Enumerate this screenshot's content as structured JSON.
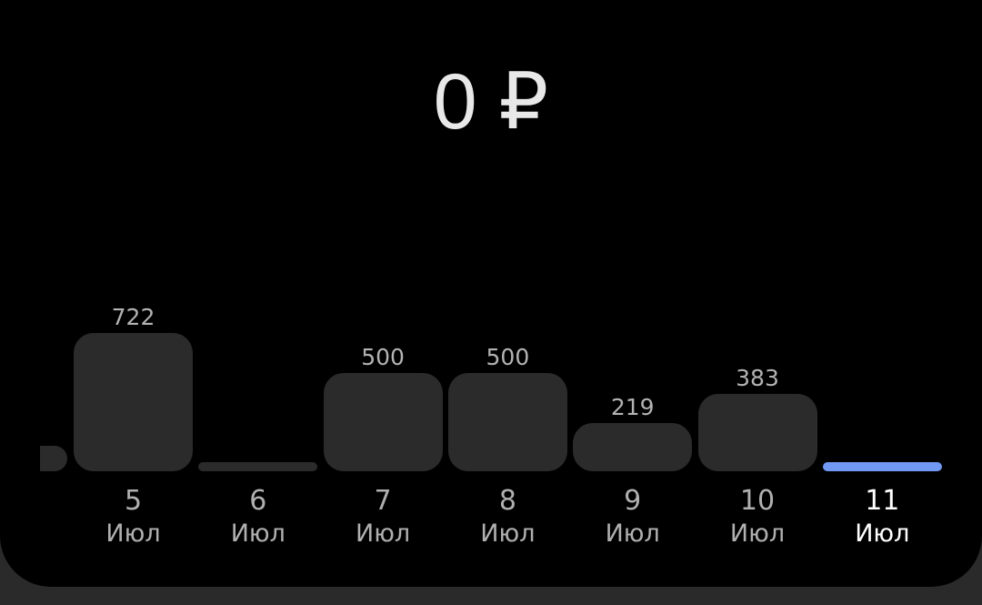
{
  "total": "0 ₽",
  "colors": {
    "bar": "#2b2b2b",
    "selected_bar": "#7199f4",
    "background": "#000000"
  },
  "chart_data": {
    "type": "bar",
    "categories": [
      {
        "day": "5",
        "month": "Июл"
      },
      {
        "day": "6",
        "month": "Июл"
      },
      {
        "day": "7",
        "month": "Июл"
      },
      {
        "day": "8",
        "month": "Июл"
      },
      {
        "day": "9",
        "month": "Июл"
      },
      {
        "day": "10",
        "month": "Июл"
      },
      {
        "day": "11",
        "month": "Июл"
      }
    ],
    "values": [
      722,
      0,
      500,
      500,
      219,
      383,
      0
    ],
    "labels": [
      "722",
      "",
      "500",
      "500",
      "219",
      "383",
      ""
    ],
    "selected_index": 6
  }
}
